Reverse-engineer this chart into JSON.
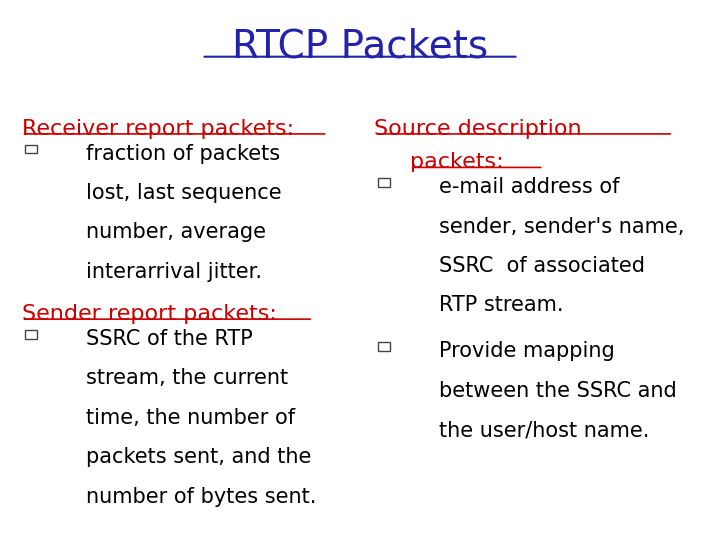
{
  "title": "RTCP Packets",
  "title_color": "#2222AA",
  "title_fontsize": 28,
  "background_color": "#FFFFFF",
  "left_heading1": "Receiver report packets:",
  "left_heading2": "Sender report packets:",
  "right_heading1_line1": "Source description",
  "right_heading1_line2": "packets:",
  "heading_color": "#CC0000",
  "heading_fontsize": 16,
  "body_fontsize": 15,
  "body_color": "#000000",
  "font_family": "Comic Sans MS",
  "left_bullet1": [
    "fraction of packets",
    "lost, last sequence",
    "number, average",
    "interarrival jitter."
  ],
  "left_bullet2": [
    "SSRC of the RTP",
    "stream, the current",
    "time, the number of",
    "packets sent, and the",
    "number of bytes sent."
  ],
  "right_bullet1": [
    "e-mail address of",
    "sender, sender's name,",
    "SSRC  of associated",
    "RTP stream."
  ],
  "right_bullet2": [
    "Provide mapping",
    "between the SSRC and",
    "the user/host name."
  ]
}
